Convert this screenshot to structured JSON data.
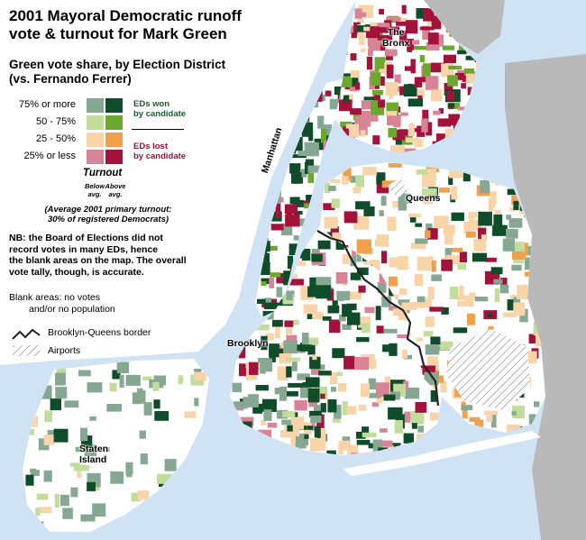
{
  "title": [
    "2001 Mayoral Democratic runoff",
    "vote & turnout for Mark Green"
  ],
  "subtitle": [
    "Green vote share, by Election District",
    "(vs. Fernando Ferrer)"
  ],
  "legend": {
    "rows": [
      {
        "label": "75% or more",
        "below": "#86a892",
        "above": "#0f4d2a"
      },
      {
        "label": "50 - 75%",
        "below": "#c2dc9c",
        "above": "#6aa82e"
      },
      {
        "label": "25 - 50%",
        "below": "#f8d4a8",
        "above": "#f0a04a"
      },
      {
        "label": "25% or less",
        "below": "#d88496",
        "above": "#a3123a"
      }
    ],
    "won_label": [
      "EDs won",
      "by candidate"
    ],
    "lost_label": [
      "EDs lost",
      "by candidate"
    ],
    "turnout_title": "Turnout",
    "below_label": [
      "Below",
      "avg."
    ],
    "above_label": [
      "Above",
      "avg."
    ],
    "avg_note": [
      "(Average 2001 primary turnout:",
      "30% of registered Democrats)"
    ]
  },
  "nb_note": [
    "NB: the Board of Elections did not",
    "record votes in many EDs, hence",
    "the blank areas on the map. The overall",
    "vote tally, though, is accurate."
  ],
  "blank_note": [
    "Blank areas: no votes",
    "and/or no population"
  ],
  "border_label": "Brooklyn-Queens border",
  "airports_label": "Airports",
  "places": {
    "bronx": [
      "The",
      "Bronx"
    ],
    "manhattan": "Manhattan",
    "queens": "Queens",
    "brooklyn": "Brooklyn",
    "staten_island": [
      "Staten",
      "Island"
    ]
  },
  "colors": {
    "water": "#cfe3f5",
    "land_nj": "#b9b9b9",
    "border": "#222222"
  }
}
